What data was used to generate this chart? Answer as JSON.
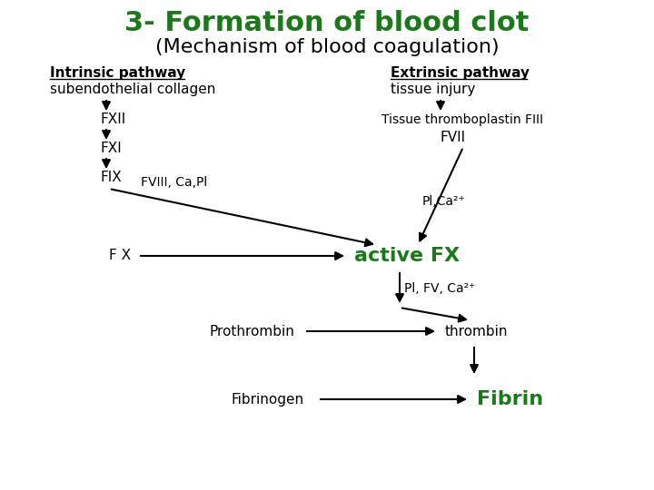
{
  "title": "3- Formation of blood clot",
  "subtitle": "(Mechanism of blood coagulation)",
  "title_color": "#1a7a1a",
  "subtitle_color": "#000000",
  "title_fontsize": 22,
  "subtitle_fontsize": 16,
  "background_color": "#ffffff",
  "labels": {
    "intrinsic_header": "Intrinsic pathway",
    "intrinsic_sub": "subendothelial collagen",
    "extrinsic_header": "Extrinsic pathway",
    "extrinsic_sub": "tissue injury",
    "fxii": "FXII",
    "fxi": "FXI",
    "fix": "FIX",
    "fviii_ca_pl": "FVIII, Ca,Pl",
    "fx": "F X",
    "active_fx": "active FX",
    "tissue_thrombo": "Tissue thromboplastin FIII",
    "fvii": "FVII",
    "pl_ca2": "Pl,Ca²⁺",
    "pl_fv_ca2": "Pl, FV, Ca²⁺",
    "prothrombin": "Prothrombin",
    "thrombin": "thrombin",
    "fibrinogen": "Fibrinogen",
    "fibrin": "Fibrin"
  },
  "green_color": "#1a7a1a",
  "black_color": "#000000"
}
